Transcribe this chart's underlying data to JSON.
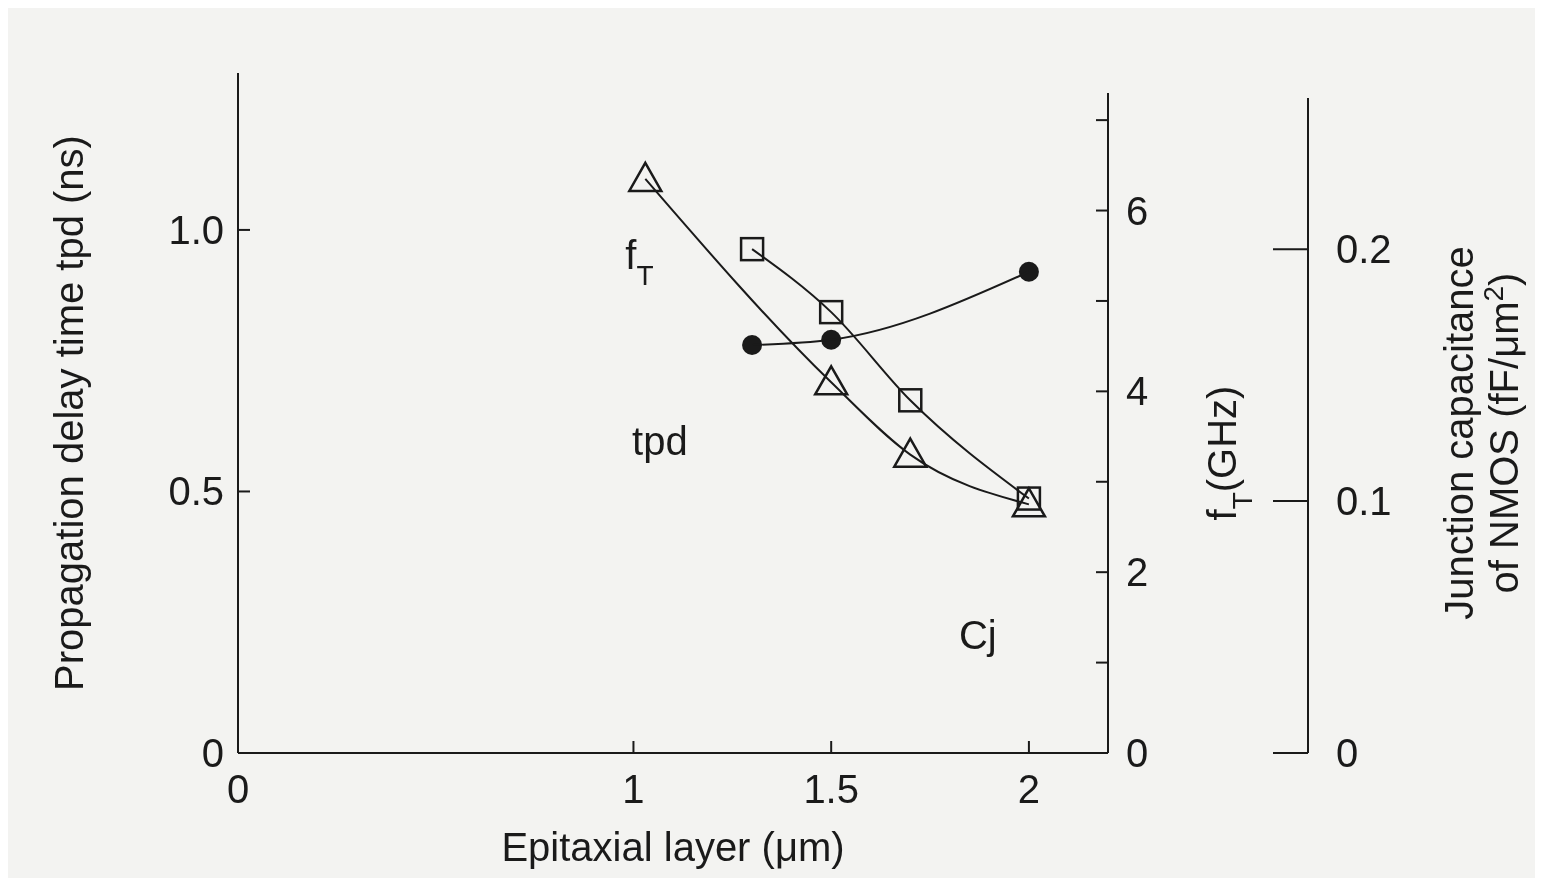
{
  "chart_data": {
    "type": "line",
    "xlabel": "Epitaxial layer (μm)",
    "ylabel": "Propagation delay time    tpd (ns)",
    "y2label": "f$_{T}$(GHz)",
    "y3label": "Junction capacitance\nof NMOS (fF/μm$^{2}$)",
    "xlim": [
      0,
      2.2
    ],
    "xticks": [
      0,
      1,
      1.5,
      2
    ],
    "ylim": [
      0,
      1.3
    ],
    "yticks": [
      0,
      0.5,
      {
        "value": 1,
        "label": "1.0"
      }
    ],
    "y2lim": [
      0,
      7.3
    ],
    "y2ticks": [
      0,
      {
        "value": 1,
        "label": null
      },
      2,
      {
        "value": 3,
        "label": null
      },
      4,
      {
        "value": 5,
        "label": null
      },
      6,
      {
        "value": 7,
        "label": null
      }
    ],
    "y3lim": [
      0,
      0.26
    ],
    "y3ticks": [
      0,
      0.1,
      0.2
    ],
    "grid": false,
    "series": [
      {
        "name": "f$_{T}$",
        "color": "#1a1a1a",
        "axis": "y2",
        "marker": "triangle",
        "x": [
          1.03,
          1.5,
          1.7,
          2.0
        ],
        "values": [
          6.35,
          4.1,
          3.3,
          2.75
        ]
      },
      {
        "name": "Cj",
        "color": "#1a1a1a",
        "axis": "y3",
        "marker": "square",
        "x": [
          1.3,
          1.5,
          1.7,
          2.0
        ],
        "values": [
          0.2,
          0.175,
          0.14,
          0.101
        ]
      },
      {
        "name": "tpd",
        "color": "#1a1a1a",
        "axis": "y",
        "marker": "circle",
        "x": [
          1.3,
          1.5,
          2.0
        ],
        "values": [
          0.78,
          0.79,
          0.92
        ]
      }
    ]
  }
}
